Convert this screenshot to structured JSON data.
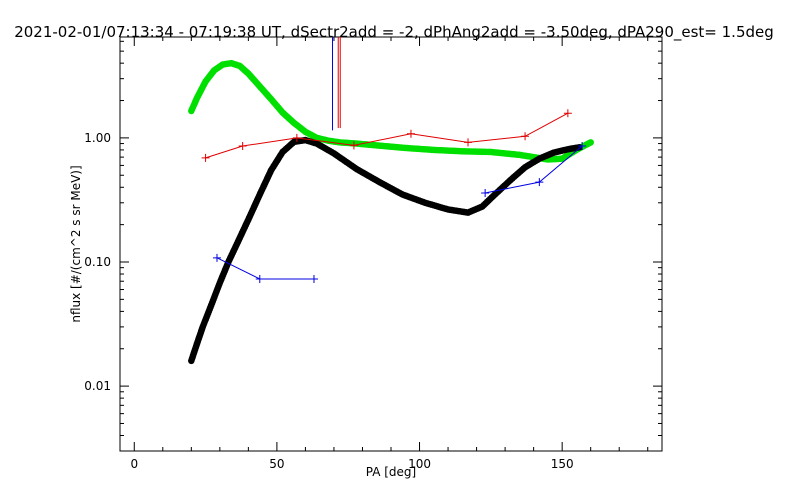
{
  "chart_data": {
    "type": "scatter",
    "title": "2021-02-01/07:13:34 - 07:19:38 UT, dSectr2add = -2, dPhAng2add = -3.50deg, dPA290_est=    1.5deg",
    "xlabel": "PA [deg]",
    "ylabel": "nflux [#/(cm^2 s sr MeV)]",
    "xlim": [
      -5,
      185
    ],
    "ylim": [
      0.003,
      6.5
    ],
    "x_scale": "linear",
    "y_scale": "log",
    "x_ticks": [
      0,
      50,
      100,
      150
    ],
    "x_tick_labels": [
      "0",
      "50",
      "100",
      "150"
    ],
    "y_ticks": [
      0.01,
      0.1,
      1.0
    ],
    "y_tick_labels": [
      "0.01",
      "0.10",
      "1.00"
    ],
    "grid": false,
    "legend": "none",
    "series": [
      {
        "style": "dots",
        "color": "#00e000",
        "x": [
          20,
          22,
          25,
          28,
          31,
          34,
          37,
          40,
          44,
          48,
          52,
          56,
          60,
          64,
          68,
          72,
          78,
          85,
          95,
          105,
          115,
          125,
          135,
          140,
          145,
          150,
          155,
          160
        ],
        "y": [
          1.65,
          2.1,
          2.85,
          3.5,
          3.9,
          4.0,
          3.8,
          3.3,
          2.6,
          2.05,
          1.6,
          1.32,
          1.12,
          1.0,
          0.95,
          0.92,
          0.9,
          0.87,
          0.83,
          0.8,
          0.78,
          0.77,
          0.73,
          0.7,
          0.67,
          0.68,
          0.8,
          0.92
        ]
      },
      {
        "style": "dots",
        "color": "#000000",
        "x": [
          20,
          22,
          24,
          27,
          30,
          33,
          36,
          40,
          44,
          48,
          52,
          56,
          60,
          64,
          70,
          78,
          86,
          94,
          102,
          110,
          117,
          122,
          127,
          132,
          137,
          142,
          147,
          152,
          156
        ],
        "y": [
          0.016,
          0.022,
          0.03,
          0.045,
          0.068,
          0.1,
          0.14,
          0.22,
          0.35,
          0.55,
          0.77,
          0.93,
          0.96,
          0.9,
          0.75,
          0.56,
          0.44,
          0.35,
          0.3,
          0.265,
          0.25,
          0.28,
          0.36,
          0.46,
          0.58,
          0.68,
          0.76,
          0.81,
          0.84
        ]
      },
      {
        "style": "line+plus",
        "color": "#e00000",
        "x": [
          25,
          38,
          57,
          77,
          97,
          117,
          137,
          152
        ],
        "y": [
          0.69,
          0.86,
          1.0,
          0.87,
          1.08,
          0.92,
          1.03,
          1.58
        ]
      },
      {
        "style": "line+plus",
        "color": "#0000e0",
        "x": [
          29,
          44,
          63
        ],
        "y": [
          0.108,
          0.073,
          0.073
        ]
      },
      {
        "style": "line+plus",
        "color": "#0000e0",
        "x": [
          123,
          142,
          157
        ],
        "y": [
          0.36,
          0.44,
          0.86
        ]
      },
      {
        "style": "vline",
        "color": "#0000e0",
        "x": [
          69.5,
          69.5
        ],
        "y": [
          1.15,
          6.5
        ]
      },
      {
        "style": "vline",
        "color": "#e00000",
        "x": [
          71.5,
          71.5
        ],
        "y": [
          1.2,
          6.5
        ]
      },
      {
        "style": "vline",
        "color": "#e00000",
        "x": [
          72.2,
          72.2
        ],
        "y": [
          1.2,
          6.5
        ]
      }
    ]
  }
}
